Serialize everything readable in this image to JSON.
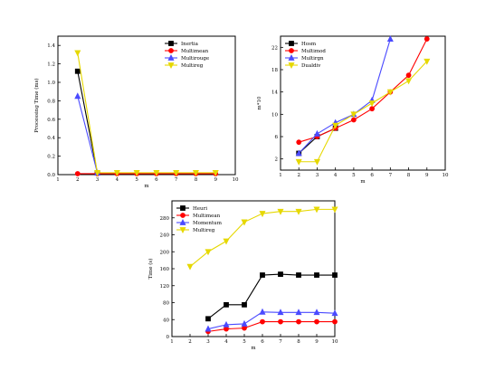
{
  "chart_data": [
    {
      "type": "line",
      "xlabel": "m",
      "ylabel": "Processing Time (ms)",
      "xlim": [
        1,
        10
      ],
      "ylim": [
        0,
        1.5
      ],
      "xticks": [
        1,
        2,
        3,
        4,
        5,
        6,
        7,
        8,
        9,
        10
      ],
      "yticks": [
        0.0,
        0.2,
        0.4,
        0.6,
        0.8,
        1.0,
        1.2,
        1.4
      ],
      "ytick_labels": [
        "0.0",
        "0.2",
        "0.4",
        "0.6",
        "0.8",
        "1.0",
        "1.2",
        "1.4"
      ],
      "legend_position": "top-right",
      "series": [
        {
          "name": "Inertia",
          "color": "#000000",
          "marker": "square",
          "x": [
            2,
            3
          ],
          "y": [
            1.12,
            0.02
          ]
        },
        {
          "name": "Multimean",
          "color": "#ff0000",
          "marker": "circle",
          "x": [
            2,
            3,
            4,
            5,
            6,
            7,
            8,
            9
          ],
          "y": [
            0.01,
            0.01,
            0.01,
            0.01,
            0.01,
            0.01,
            0.01,
            0.01
          ]
        },
        {
          "name": "Multirouge",
          "color": "#4a4aff",
          "marker": "triangle",
          "x": [
            2,
            3
          ],
          "y": [
            0.85,
            0.02
          ]
        },
        {
          "name": "Multireg",
          "color": "#e6d800",
          "marker": "triangle-down",
          "x": [
            2,
            3,
            4,
            5,
            6,
            7,
            8,
            9
          ],
          "y": [
            1.32,
            0.02,
            0.02,
            0.02,
            0.02,
            0.02,
            0.02,
            0.02
          ]
        }
      ]
    },
    {
      "type": "line",
      "xlabel": "m",
      "ylabel": "m*10",
      "xlim": [
        1,
        10
      ],
      "ylim": [
        0,
        2.4
      ],
      "xticks": [
        1,
        2,
        3,
        4,
        5,
        6,
        7,
        8,
        9,
        10
      ],
      "yticks": [
        0.2,
        0.6,
        1.0,
        1.4,
        1.8,
        2.2
      ],
      "ytick_labels": [
        "2",
        "6",
        "10",
        "14",
        "18",
        "22"
      ],
      "legend_position": "top-left",
      "series": [
        {
          "name": "Hosm",
          "color": "#000000",
          "marker": "square",
          "x": [
            2,
            3,
            4
          ],
          "y": [
            0.3,
            0.6,
            0.75
          ]
        },
        {
          "name": "Multimod",
          "color": "#ff0000",
          "marker": "circle",
          "x": [
            2,
            3,
            4,
            5,
            6,
            7,
            8,
            9
          ],
          "y": [
            0.5,
            0.6,
            0.75,
            0.9,
            1.1,
            1.4,
            1.7,
            2.35
          ]
        },
        {
          "name": "Multirgn",
          "color": "#4a4aff",
          "marker": "triangle",
          "x": [
            2,
            3,
            4,
            5,
            6,
            7
          ],
          "y": [
            0.3,
            0.65,
            0.85,
            1.0,
            1.25,
            2.35
          ]
        },
        {
          "name": "Dualdiv",
          "color": "#e6d800",
          "marker": "triangle-down",
          "x": [
            2,
            3,
            4,
            5,
            6,
            7,
            8,
            9
          ],
          "y": [
            0.15,
            0.15,
            0.8,
            1.0,
            1.2,
            1.4,
            1.6,
            1.95
          ]
        }
      ]
    },
    {
      "type": "line",
      "xlabel": "m",
      "ylabel": "Time (s)",
      "xlim": [
        1,
        10
      ],
      "ylim": [
        0,
        320
      ],
      "xticks": [
        1,
        2,
        3,
        4,
        5,
        6,
        7,
        8,
        9,
        10
      ],
      "yticks": [
        0,
        40,
        80,
        120,
        160,
        200,
        240,
        280
      ],
      "ytick_labels": [
        "0",
        "40",
        "80",
        "120",
        "160",
        "200",
        "240",
        "280"
      ],
      "legend_position": "top-left",
      "series": [
        {
          "name": "Heuri",
          "color": "#000000",
          "marker": "square",
          "x": [
            3,
            4,
            5,
            6,
            7,
            8,
            9,
            10
          ],
          "y": [
            42,
            75,
            75,
            145,
            147,
            145,
            145,
            145
          ]
        },
        {
          "name": "Multimean",
          "color": "#ff0000",
          "marker": "circle",
          "x": [
            3,
            4,
            5,
            6,
            7,
            8,
            9,
            10
          ],
          "y": [
            12,
            18,
            20,
            35,
            35,
            35,
            35,
            35
          ]
        },
        {
          "name": "Momentum",
          "color": "#4a4aff",
          "marker": "triangle",
          "x": [
            3,
            4,
            5,
            6,
            7,
            8,
            9,
            10
          ],
          "y": [
            18,
            28,
            30,
            58,
            57,
            57,
            57,
            55
          ]
        },
        {
          "name": "Multireg",
          "color": "#e6d800",
          "marker": "triangle-down",
          "x": [
            2,
            3,
            4,
            5,
            6,
            7,
            8,
            9,
            10
          ],
          "y": [
            165,
            200,
            225,
            270,
            290,
            295,
            295,
            300,
            300
          ]
        }
      ]
    }
  ]
}
